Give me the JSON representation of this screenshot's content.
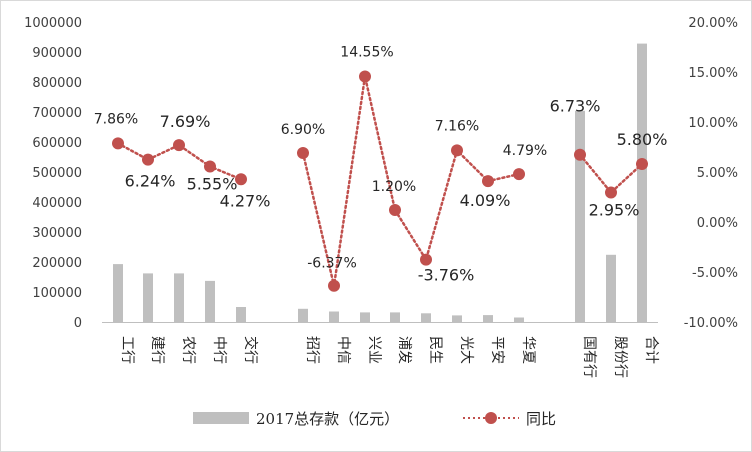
{
  "chart_data": {
    "type": "bar+line",
    "title": "",
    "categories": [
      "工行",
      "建行",
      "农行",
      "中行",
      "交行",
      "招行",
      "中信",
      "兴业",
      "浦发",
      "民生",
      "光大",
      "平安",
      "华夏",
      "国有行",
      "股份行",
      "合计"
    ],
    "series": [
      {
        "name": "2017总存款（亿元）",
        "type": "bar",
        "axis": "left",
        "color": "#bfbfbf",
        "values": [
          193000,
          162000,
          162000,
          137000,
          50000,
          44000,
          35000,
          32000,
          32000,
          29000,
          22000,
          23000,
          15000,
          704000,
          224000,
          928000
        ]
      },
      {
        "name": "同比",
        "type": "line",
        "axis": "right",
        "color": "#c0504d",
        "line_style": "dotted",
        "marker": "circle",
        "values": [
          7.86,
          6.24,
          7.69,
          5.55,
          4.27,
          6.9,
          -6.37,
          14.55,
          1.2,
          -3.76,
          7.16,
          4.09,
          4.79,
          6.73,
          2.95,
          5.8
        ],
        "labels": [
          "7.86%",
          "6.24%",
          "7.69%",
          "5.55%",
          "4.27%",
          "6.90%",
          "-6.37%",
          "14.55%",
          "1.20%",
          "-3.76%",
          "7.16%",
          "4.09%",
          "4.79%",
          "6.73%",
          "2.95%",
          "5.80%"
        ],
        "segments": [
          [
            0,
            4
          ],
          [
            5,
            12
          ],
          [
            13,
            15
          ]
        ]
      }
    ],
    "left_axis": {
      "range": [
        0,
        1000000
      ],
      "ticks": [
        "0",
        "100000",
        "200000",
        "300000",
        "400000",
        "500000",
        "600000",
        "700000",
        "800000",
        "900000",
        "1000000"
      ]
    },
    "right_axis": {
      "range": [
        -10,
        20
      ],
      "ticks": [
        "-10.00%",
        "-5.00%",
        "0.00%",
        "5.00%",
        "10.00%",
        "15.00%",
        "20.00%"
      ]
    },
    "grid": false,
    "legend_position": "bottom"
  }
}
